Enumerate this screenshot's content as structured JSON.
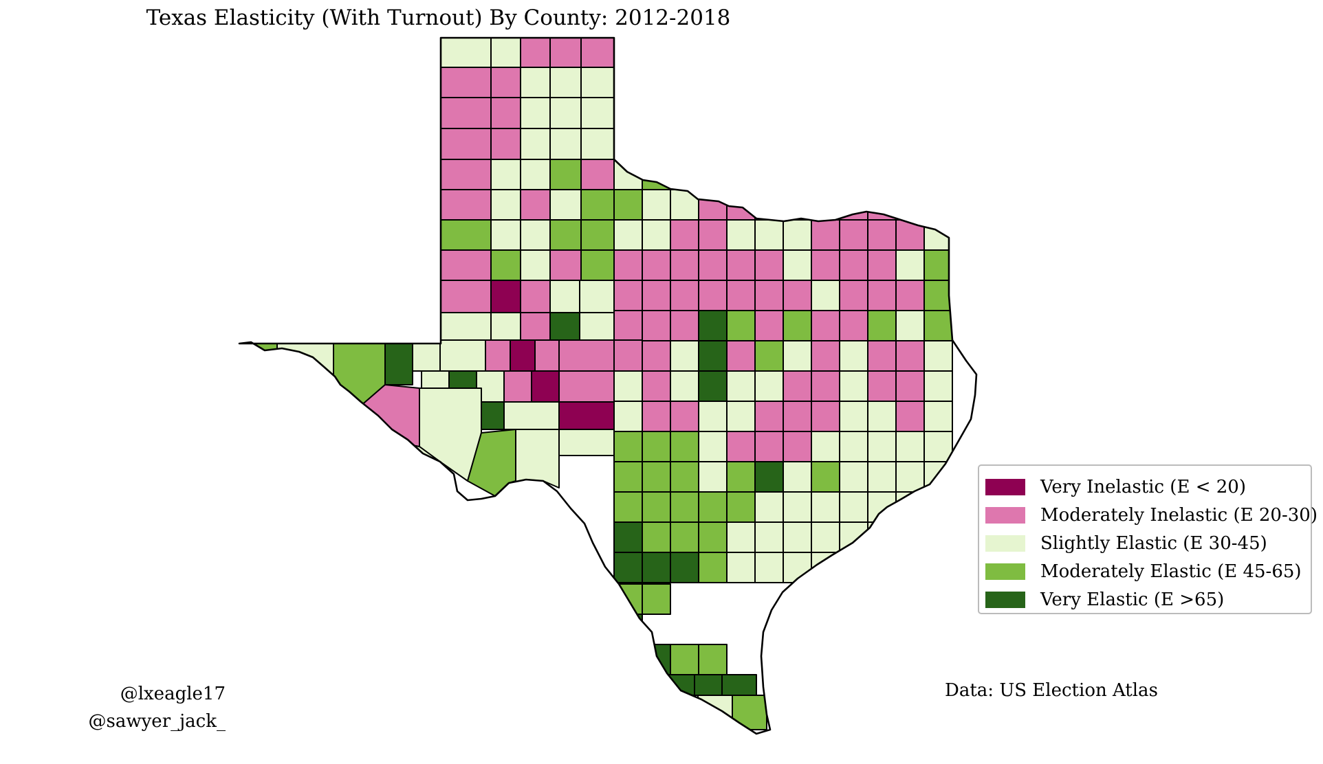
{
  "title": "Texas Elasticity (With Turnout) By County: 2012-2018",
  "legend": {
    "placement": "center-right",
    "items": [
      {
        "label": "Very Inelastic (E < 20)",
        "color": "#8e0152"
      },
      {
        "label": "Moderately Inelastic (E 20-30)",
        "color": "#de77ae"
      },
      {
        "label": "Slightly Elastic (E 30-45)",
        "color": "#e6f5d0"
      },
      {
        "label": "Moderately Elastic (E 45-65)",
        "color": "#7fbc41"
      },
      {
        "label": "Very Elastic (E >65)",
        "color": "#276419"
      }
    ]
  },
  "credits": [
    "@lxeagle17",
    "@sawyer_jack_"
  ],
  "source": "Data: US Election Atlas",
  "map": {
    "region": "Texas",
    "unit": "county",
    "color_by": "elasticity category"
  }
}
